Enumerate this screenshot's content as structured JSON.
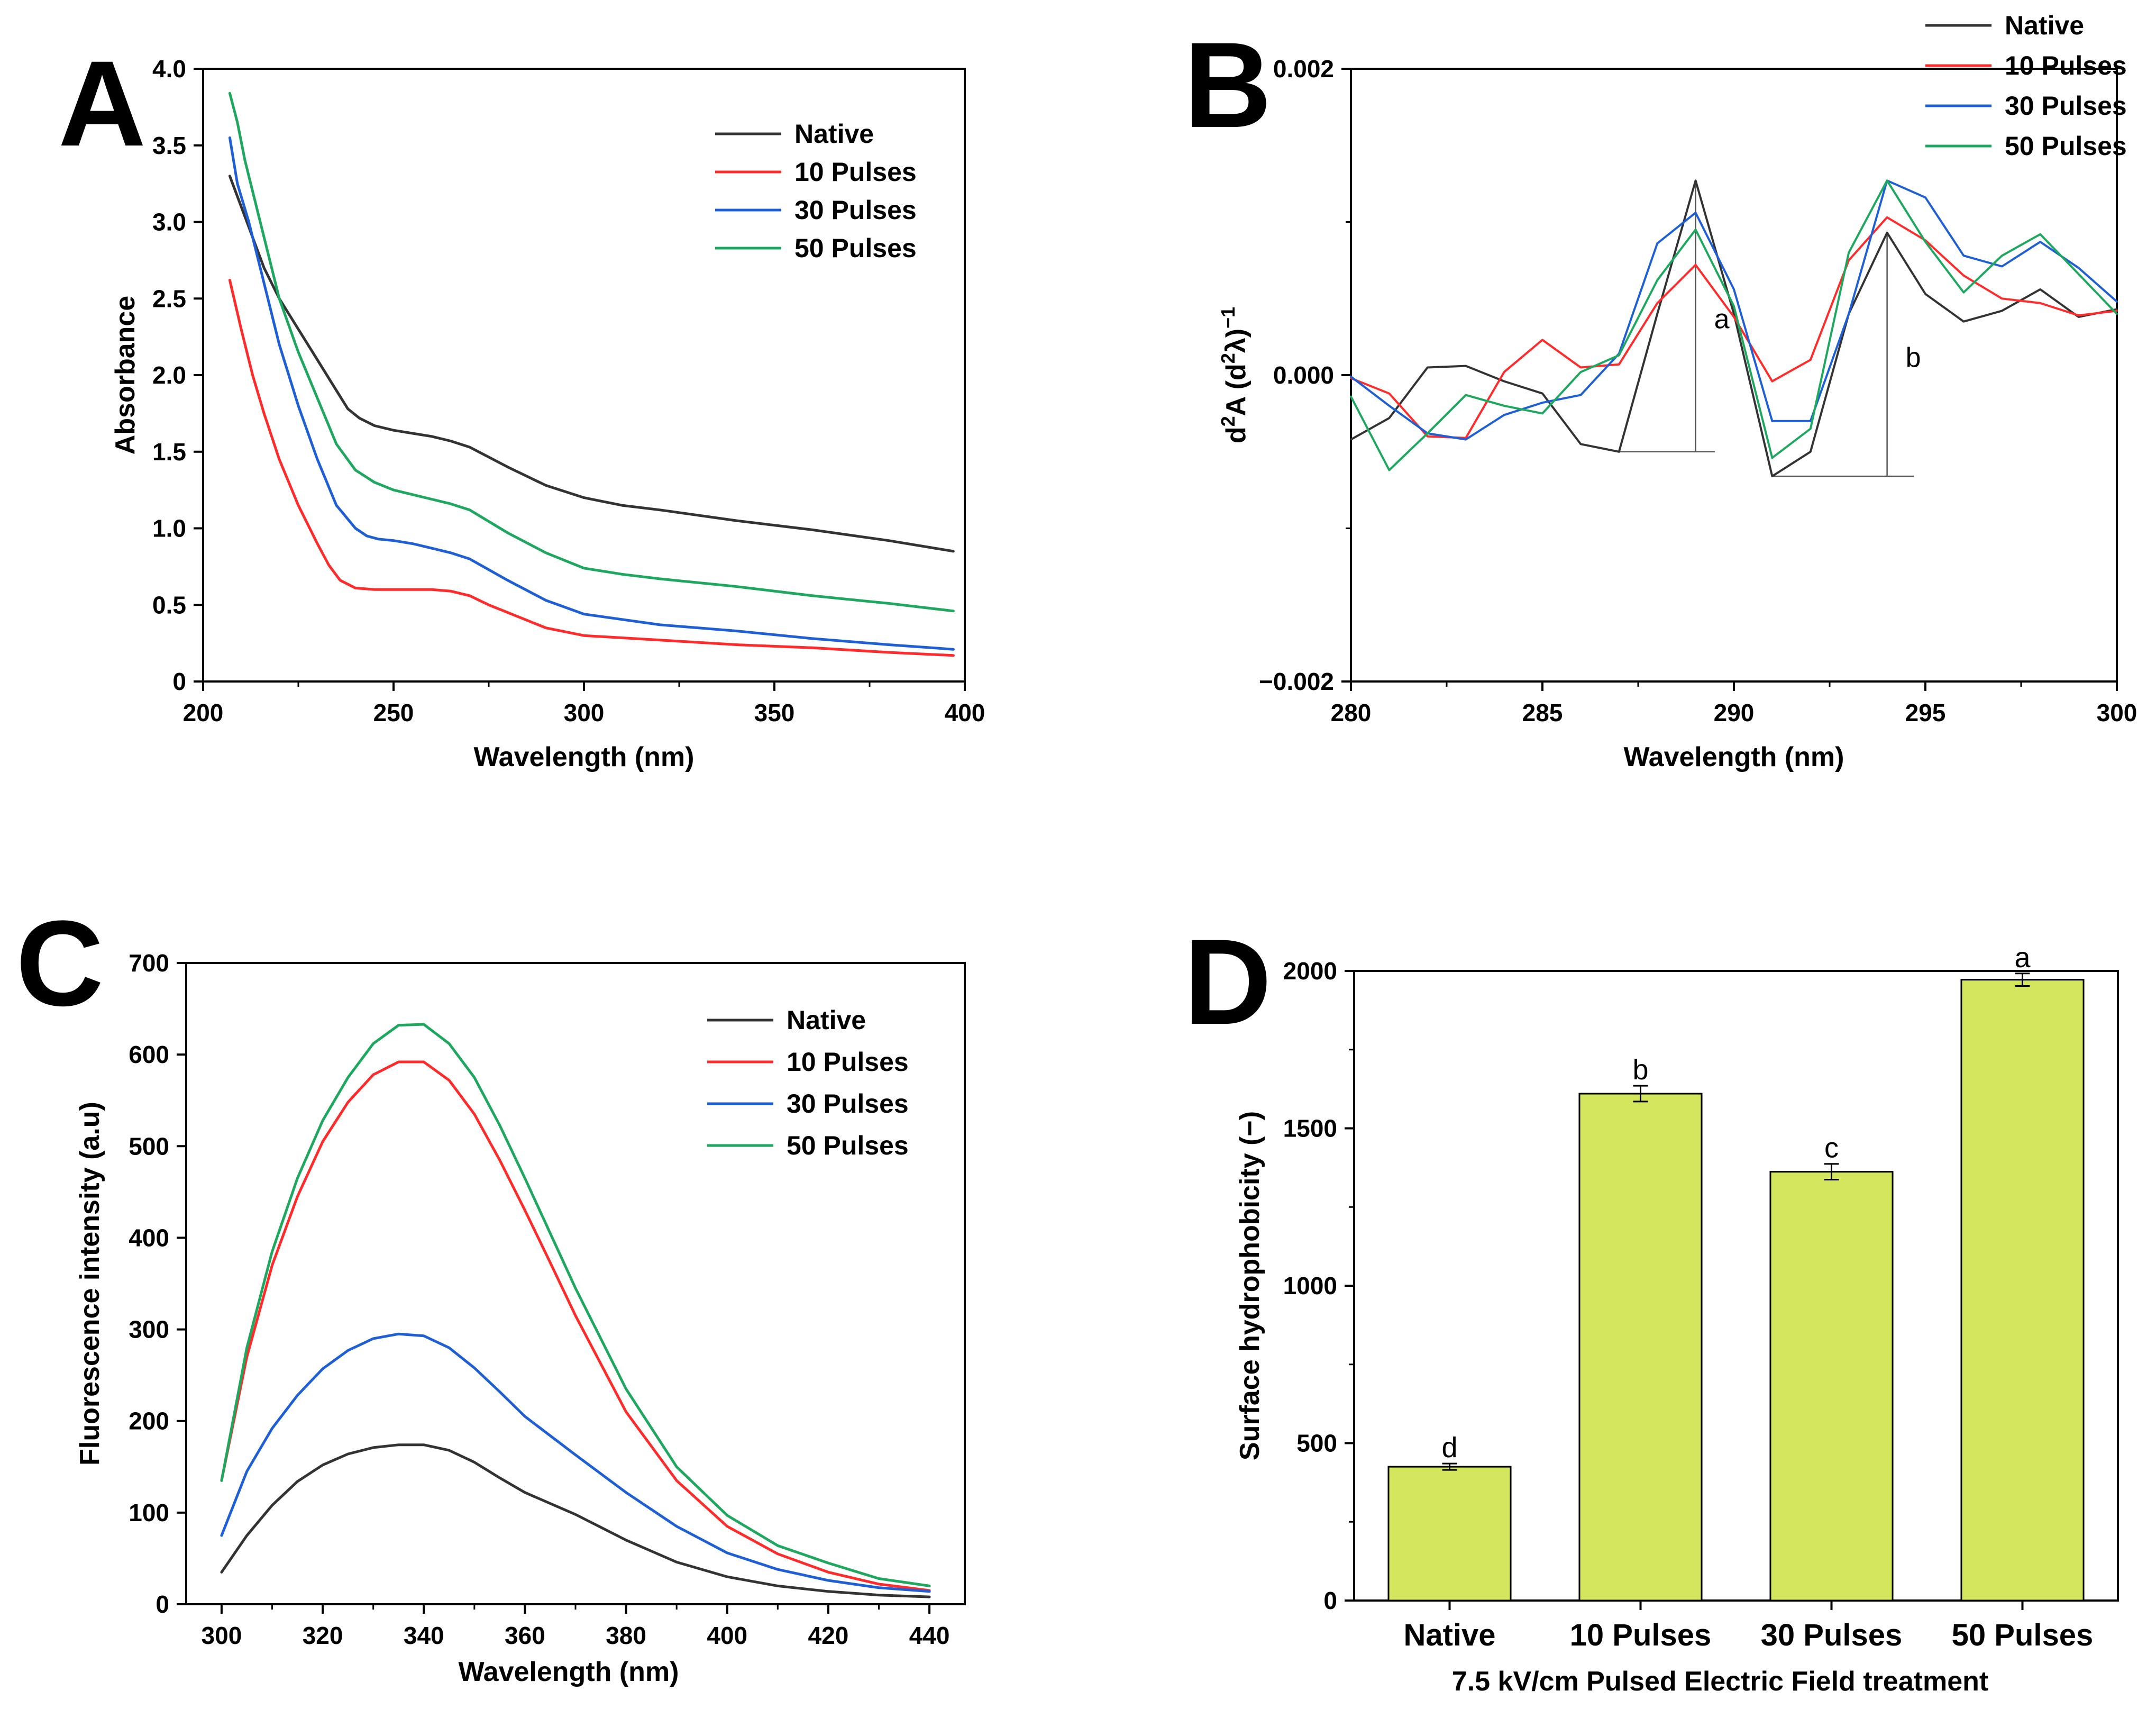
{
  "chart_data": [
    {
      "id": "A",
      "type": "line",
      "panel_label": "A",
      "xlabel": "Wavelength (nm)",
      "ylabel": "Absorbance",
      "xlim": [
        200,
        400
      ],
      "ylim": [
        0,
        4.0
      ],
      "xticks": [
        200,
        250,
        300,
        350,
        400
      ],
      "xtick_labels": [
        "200",
        "250",
        "300",
        "350",
        "400"
      ],
      "yticks": [
        0,
        0.5,
        1.0,
        1.5,
        2.0,
        2.5,
        3.0,
        3.5,
        4.0
      ],
      "ytick_labels": [
        "0",
        "0.5",
        "1.0",
        "1.5",
        "2.0",
        "2.5",
        "3.0",
        "3.5",
        "4.0"
      ],
      "legend_position": "top-right",
      "grid": false,
      "series": [
        {
          "name": "Native",
          "color": "#333333",
          "x": [
            207,
            210,
            213,
            216,
            220,
            225,
            230,
            235,
            238,
            241,
            245,
            250,
            255,
            260,
            265,
            270,
            280,
            290,
            300,
            310,
            320,
            340,
            360,
            380,
            397
          ],
          "y": [
            3.3,
            3.1,
            2.9,
            2.7,
            2.5,
            2.3,
            2.1,
            1.9,
            1.78,
            1.72,
            1.67,
            1.64,
            1.62,
            1.6,
            1.57,
            1.53,
            1.4,
            1.28,
            1.2,
            1.15,
            1.12,
            1.05,
            0.99,
            0.92,
            0.85
          ]
        },
        {
          "name": "10 Pulses",
          "color": "#ff2a2a",
          "x": [
            207,
            210,
            213,
            216,
            220,
            225,
            230,
            233,
            236,
            240,
            245,
            250,
            255,
            260,
            265,
            270,
            275,
            280,
            290,
            300,
            320,
            340,
            360,
            380,
            397
          ],
          "y": [
            2.62,
            2.3,
            2.0,
            1.75,
            1.45,
            1.15,
            0.9,
            0.76,
            0.66,
            0.61,
            0.6,
            0.6,
            0.6,
            0.6,
            0.59,
            0.56,
            0.5,
            0.45,
            0.35,
            0.3,
            0.27,
            0.24,
            0.22,
            0.19,
            0.17
          ]
        },
        {
          "name": "30 Pulses",
          "color": "#1f5fd6",
          "x": [
            207,
            209,
            212,
            215,
            220,
            225,
            230,
            235,
            240,
            243,
            246,
            250,
            255,
            260,
            265,
            270,
            280,
            290,
            300,
            320,
            340,
            360,
            380,
            397
          ],
          "y": [
            3.55,
            3.25,
            3.0,
            2.7,
            2.2,
            1.8,
            1.45,
            1.15,
            1.0,
            0.95,
            0.93,
            0.92,
            0.9,
            0.87,
            0.84,
            0.8,
            0.66,
            0.53,
            0.44,
            0.37,
            0.33,
            0.28,
            0.24,
            0.21
          ]
        },
        {
          "name": "50 Pulses",
          "color": "#1ea75e",
          "x": [
            207,
            209,
            211,
            213,
            216,
            220,
            225,
            230,
            235,
            240,
            245,
            250,
            255,
            260,
            265,
            270,
            280,
            290,
            300,
            310,
            320,
            340,
            360,
            380,
            397
          ],
          "y": [
            3.84,
            3.65,
            3.4,
            3.2,
            2.9,
            2.5,
            2.15,
            1.85,
            1.55,
            1.38,
            1.3,
            1.25,
            1.22,
            1.19,
            1.16,
            1.12,
            0.97,
            0.84,
            0.74,
            0.7,
            0.67,
            0.62,
            0.56,
            0.51,
            0.46
          ]
        }
      ]
    },
    {
      "id": "B",
      "type": "line",
      "panel_label": "B",
      "xlabel": "Wavelength (nm)",
      "ylabel": "d²A (d²λ)⁻¹",
      "ylabel_parts": {
        "d": "d",
        "two1": "2",
        "a": "A (d",
        "two2": "2",
        "lambda": "λ)",
        "minus_one": "−1"
      },
      "xlim": [
        280,
        300
      ],
      "ylim": [
        -0.002,
        0.002
      ],
      "xticks": [
        280,
        285,
        290,
        295,
        300
      ],
      "xtick_labels": [
        "280",
        "285",
        "290",
        "295",
        "300"
      ],
      "yticks": [
        -0.002,
        0.0,
        0.002
      ],
      "ytick_labels": [
        "−0.002",
        "0.000",
        "0.002"
      ],
      "legend_position": "top-right",
      "grid": false,
      "annotations": [
        {
          "text": "a",
          "x_peak": 289,
          "y_peak": 0.00127,
          "y_base": -0.0005,
          "x_base_from": 287,
          "x_base_to": 289.5
        },
        {
          "text": "b",
          "x_peak": 294,
          "y_peak": 0.00093,
          "y_base": -0.00066,
          "x_base_from": 291,
          "x_base_to": 294.7
        }
      ],
      "series": [
        {
          "name": "Native",
          "color": "#333333",
          "x": [
            280,
            281,
            282,
            283,
            284,
            285,
            286,
            287,
            288,
            289,
            290,
            291,
            292,
            293,
            294,
            295,
            296,
            297,
            298,
            299,
            300
          ],
          "y": [
            -0.00042,
            -0.00028,
            5e-05,
            6e-05,
            -4e-05,
            -0.00012,
            -0.00045,
            -0.0005,
            0.0004,
            0.00127,
            0.0004,
            -0.00066,
            -0.0005,
            0.0004,
            0.00093,
            0.00053,
            0.00035,
            0.00042,
            0.00056,
            0.00038,
            0.00043
          ]
        },
        {
          "name": "10 Pulses",
          "color": "#ff2a2a",
          "x": [
            280,
            281,
            282,
            283,
            284,
            285,
            286,
            287,
            288,
            289,
            290,
            291,
            292,
            293,
            294,
            295,
            296,
            297,
            298,
            299,
            300
          ],
          "y": [
            -2e-05,
            -0.00012,
            -0.0004,
            -0.00041,
            2e-05,
            0.00023,
            5e-05,
            7e-05,
            0.00047,
            0.00072,
            0.00038,
            -4e-05,
            0.0001,
            0.00075,
            0.00103,
            0.00088,
            0.00065,
            0.0005,
            0.00047,
            0.00039,
            0.00042
          ]
        },
        {
          "name": "30 Pulses",
          "color": "#1f5fd6",
          "x": [
            280,
            281,
            282,
            283,
            284,
            285,
            286,
            287,
            288,
            289,
            290,
            291,
            292,
            293,
            294,
            295,
            296,
            297,
            298,
            299,
            300
          ],
          "y": [
            -1e-05,
            -0.0002,
            -0.00038,
            -0.00042,
            -0.00026,
            -0.00018,
            -0.00013,
            0.00014,
            0.00086,
            0.00106,
            0.00056,
            -0.0003,
            -0.0003,
            0.0004,
            0.00127,
            0.00116,
            0.00078,
            0.00071,
            0.00087,
            0.0007,
            0.00048
          ]
        },
        {
          "name": "50 Pulses",
          "color": "#1ea75e",
          "x": [
            280,
            281,
            282,
            283,
            284,
            285,
            286,
            287,
            288,
            289,
            290,
            291,
            292,
            293,
            294,
            295,
            296,
            297,
            298,
            299,
            300
          ],
          "y": [
            -0.00014,
            -0.00062,
            -0.00038,
            -0.00013,
            -0.0002,
            -0.00025,
            2e-05,
            0.00013,
            0.00062,
            0.00095,
            0.00045,
            -0.00054,
            -0.00035,
            0.0008,
            0.00127,
            0.00087,
            0.00054,
            0.00078,
            0.00092,
            0.00066,
            0.0004
          ]
        }
      ]
    },
    {
      "id": "C",
      "type": "line",
      "panel_label": "C",
      "xlabel": "Wavelength  (nm)",
      "ylabel": "Fluorescence intensity (a.u)",
      "xlim": [
        293,
        447
      ],
      "ylim": [
        0,
        700
      ],
      "xticks": [
        300,
        320,
        340,
        360,
        380,
        400,
        420,
        440
      ],
      "xtick_labels": [
        "300",
        "320",
        "340",
        "360",
        "380",
        "400",
        "420",
        "440"
      ],
      "yticks": [
        0,
        100,
        200,
        300,
        400,
        500,
        600,
        700
      ],
      "ytick_labels": [
        "0",
        "100",
        "200",
        "300",
        "400",
        "500",
        "600",
        "700"
      ],
      "legend_position": "top-right",
      "grid": false,
      "series": [
        {
          "name": "Native",
          "color": "#333333",
          "x": [
            300,
            305,
            310,
            315,
            320,
            325,
            330,
            335,
            340,
            345,
            350,
            355,
            360,
            370,
            380,
            390,
            400,
            410,
            420,
            430,
            440
          ],
          "y": [
            35,
            75,
            108,
            134,
            152,
            164,
            171,
            174,
            174,
            168,
            155,
            138,
            122,
            98,
            70,
            46,
            30,
            20,
            14,
            10,
            8
          ]
        },
        {
          "name": "10 Pulses",
          "color": "#ff2a2a",
          "x": [
            300,
            305,
            310,
            315,
            320,
            325,
            330,
            335,
            340,
            345,
            350,
            355,
            360,
            365,
            370,
            380,
            390,
            400,
            410,
            420,
            430,
            440
          ],
          "y": [
            135,
            270,
            370,
            445,
            505,
            548,
            578,
            592,
            592,
            572,
            535,
            485,
            430,
            373,
            315,
            210,
            135,
            85,
            55,
            35,
            22,
            15
          ]
        },
        {
          "name": "30 Pulses",
          "color": "#1f5fd6",
          "x": [
            300,
            305,
            310,
            315,
            320,
            325,
            330,
            335,
            340,
            345,
            350,
            355,
            360,
            370,
            380,
            390,
            400,
            410,
            420,
            430,
            440
          ],
          "y": [
            75,
            145,
            192,
            228,
            257,
            277,
            290,
            295,
            293,
            280,
            258,
            232,
            205,
            163,
            122,
            85,
            56,
            38,
            26,
            18,
            14
          ]
        },
        {
          "name": "50 Pulses",
          "color": "#1ea75e",
          "x": [
            300,
            305,
            310,
            315,
            320,
            325,
            330,
            335,
            340,
            345,
            350,
            355,
            360,
            365,
            370,
            380,
            390,
            400,
            410,
            420,
            430,
            440
          ],
          "y": [
            135,
            280,
            385,
            465,
            528,
            575,
            612,
            632,
            633,
            612,
            575,
            523,
            465,
            405,
            345,
            235,
            150,
            97,
            64,
            45,
            28,
            20
          ]
        }
      ]
    },
    {
      "id": "D",
      "type": "bar",
      "panel_label": "D",
      "xlabel": "7.5 kV/cm  Pulsed Electric Field treatment",
      "ylabel": "Surface hydrophobicity (−)",
      "categories": [
        "Native",
        "10 Pulses",
        "30 Pulses",
        "50 Pulses"
      ],
      "values": [
        425,
        1610,
        1362,
        1972
      ],
      "errors": [
        10,
        25,
        25,
        20
      ],
      "significance_letters": [
        "d",
        "b",
        "c",
        "a"
      ],
      "ylim": [
        0,
        2000
      ],
      "yticks": [
        0,
        500,
        1000,
        1500,
        2000
      ],
      "ytick_labels": [
        "0",
        "500",
        "1000",
        "1500",
        "2000"
      ],
      "bar_color": "#d4e55e",
      "grid": false
    }
  ]
}
